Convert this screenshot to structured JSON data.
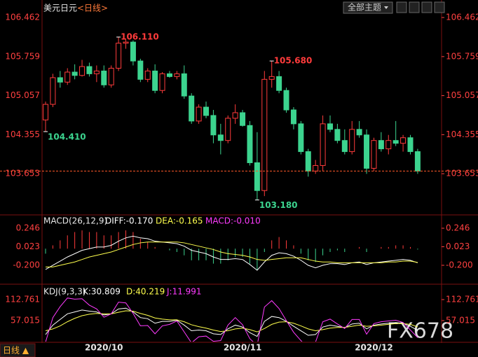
{
  "header": {
    "title": "美元日元",
    "period": "<日线>",
    "buttons": [
      "全部主题"
    ],
    "footer_tab": "日线 ▲",
    "watermark": "FX678"
  },
  "chart_data": [
    {
      "type": "candlestick",
      "up_color": "#ff3b3b",
      "down_color": "#3cd48f",
      "last_line_color": "#ff5a28",
      "open": [
        104.62,
        104.9,
        105.38,
        105.3,
        105.48,
        105.42,
        105.58,
        105.45,
        105.5,
        105.25,
        105.55,
        106.0,
        106.02,
        105.68,
        105.35,
        105.5,
        105.15,
        105.45,
        105.4,
        105.45,
        105.05,
        104.6,
        104.85,
        104.7,
        104.35,
        104.25,
        104.65,
        104.75,
        104.52,
        103.85,
        103.35,
        105.35,
        105.4,
        105.15,
        104.8,
        104.55,
        104.05,
        103.7,
        103.8,
        104.55,
        104.45,
        104.25,
        104.05,
        104.45,
        104.35,
        103.75,
        104.25,
        104.1,
        104.25,
        104.2,
        104.3,
        104.05
      ],
      "high": [
        104.95,
        105.45,
        105.5,
        105.55,
        105.62,
        105.7,
        105.65,
        105.6,
        105.6,
        105.6,
        106.11,
        106.08,
        106.05,
        105.72,
        105.55,
        105.62,
        105.48,
        105.5,
        105.5,
        105.6,
        105.1,
        104.9,
        104.95,
        104.8,
        104.55,
        104.7,
        104.9,
        104.8,
        104.6,
        104.4,
        105.5,
        105.68,
        105.5,
        105.2,
        104.85,
        104.6,
        104.1,
        103.9,
        104.7,
        104.7,
        104.55,
        104.45,
        104.6,
        104.6,
        104.45,
        104.3,
        104.4,
        104.35,
        104.6,
        104.35,
        104.35,
        104.1
      ],
      "low": [
        104.41,
        104.85,
        105.2,
        105.25,
        105.35,
        105.4,
        105.4,
        105.3,
        105.2,
        105.2,
        105.5,
        105.9,
        105.6,
        105.3,
        105.3,
        105.1,
        105.1,
        105.38,
        105.35,
        105.0,
        104.55,
        104.55,
        104.65,
        104.2,
        104.0,
        104.2,
        104.55,
        104.5,
        103.8,
        103.18,
        103.25,
        105.2,
        105.1,
        104.75,
        104.45,
        104.0,
        103.6,
        103.65,
        103.7,
        104.4,
        104.2,
        104.0,
        104.0,
        104.3,
        103.65,
        103.7,
        104.05,
        104.0,
        104.15,
        104.05,
        104.0,
        103.65
      ],
      "close": [
        104.9,
        105.38,
        105.3,
        105.48,
        105.42,
        105.58,
        105.45,
        105.5,
        105.25,
        105.55,
        106.0,
        106.02,
        105.68,
        105.35,
        105.5,
        105.15,
        105.45,
        105.4,
        105.45,
        105.05,
        104.6,
        104.85,
        104.7,
        104.35,
        104.25,
        104.65,
        104.75,
        104.52,
        103.85,
        103.35,
        105.35,
        105.4,
        105.15,
        104.8,
        104.55,
        104.05,
        103.7,
        103.8,
        104.55,
        104.45,
        104.25,
        104.05,
        104.45,
        104.35,
        103.75,
        104.25,
        104.1,
        104.25,
        104.2,
        104.3,
        104.05,
        103.7
      ],
      "ylim": [
        102.937,
        106.676
      ],
      "yticks": [
        106.462,
        105.759,
        105.057,
        104.355,
        103.653
      ],
      "annotations": [
        {
          "x": 10,
          "value": 106.11,
          "label": "106.110",
          "color": "#ff3b3b"
        },
        {
          "x": 31,
          "value": 105.68,
          "label": "105.680",
          "color": "#ff3b3b"
        },
        {
          "x": 0,
          "value": 104.41,
          "label": "104.410",
          "color": "#3cd48f"
        },
        {
          "x": 29,
          "value": 103.18,
          "label": "103.180",
          "color": "#3cd48f"
        }
      ]
    },
    {
      "type": "macd",
      "title": "MACD(26,12,9)",
      "up_color": "#ff3b3b",
      "down_color": "#3cd48f",
      "series": [
        {
          "name": "DIFF",
          "legend": "DIFF:-0.170",
          "color": "#ffffff",
          "values": [
            -0.25,
            -0.2,
            -0.15,
            -0.1,
            -0.06,
            -0.02,
            0,
            0.02,
            0.02,
            0.04,
            0.09,
            0.13,
            0.15,
            0.13,
            0.12,
            0.09,
            0.08,
            0.07,
            0.06,
            0.03,
            -0.02,
            -0.04,
            -0.06,
            -0.1,
            -0.13,
            -0.13,
            -0.12,
            -0.13,
            -0.19,
            -0.26,
            -0.16,
            -0.08,
            -0.05,
            -0.06,
            -0.09,
            -0.14,
            -0.2,
            -0.23,
            -0.2,
            -0.18,
            -0.18,
            -0.19,
            -0.17,
            -0.16,
            -0.19,
            -0.17,
            -0.16,
            -0.15,
            -0.14,
            -0.13,
            -0.14,
            -0.17
          ]
        },
        {
          "name": "DEA",
          "legend": "DEA:-0.165",
          "color": "#ffff4d",
          "values": [
            -0.22,
            -0.22,
            -0.2,
            -0.18,
            -0.16,
            -0.13,
            -0.1,
            -0.08,
            -0.06,
            -0.04,
            -0.01,
            0.02,
            0.05,
            0.07,
            0.08,
            0.08,
            0.08,
            0.08,
            0.08,
            0.07,
            0.05,
            0.03,
            0.01,
            -0.01,
            -0.04,
            -0.06,
            -0.07,
            -0.08,
            -0.1,
            -0.13,
            -0.14,
            -0.13,
            -0.12,
            -0.11,
            -0.11,
            -0.11,
            -0.13,
            -0.15,
            -0.16,
            -0.16,
            -0.17,
            -0.17,
            -0.17,
            -0.17,
            -0.17,
            -0.17,
            -0.17,
            -0.16,
            -0.16,
            -0.15,
            -0.15,
            -0.165
          ]
        },
        {
          "name": "MACD",
          "legend": "MACD:-0.010",
          "color": "#ff3bff",
          "bars": true,
          "values": [
            -0.06,
            0.04,
            0.1,
            0.16,
            0.2,
            0.22,
            0.2,
            0.2,
            0.16,
            0.16,
            0.2,
            0.22,
            0.2,
            0.12,
            0.08,
            0.02,
            0,
            -0.02,
            -0.04,
            -0.08,
            -0.14,
            -0.14,
            -0.14,
            -0.18,
            -0.18,
            -0.14,
            -0.1,
            -0.1,
            -0.18,
            -0.26,
            -0.04,
            0.1,
            0.14,
            0.1,
            0.04,
            -0.06,
            -0.14,
            -0.16,
            -0.08,
            -0.04,
            -0.02,
            -0.04,
            0,
            0.02,
            -0.04,
            0,
            0.02,
            0.02,
            0.04,
            0.04,
            0.02,
            -0.01
          ]
        }
      ],
      "ylim": [
        -0.419,
        0.381
      ],
      "yticks": [
        0.246,
        0.023,
        {
          "value": -0.2,
          "label": "-0.200"
        }
      ]
    },
    {
      "type": "kdj",
      "title": "KDJ(9,3,3)",
      "series": [
        {
          "name": "K",
          "legend": "K:30.809",
          "color": "#ffffff",
          "values": [
            20,
            45,
            60,
            75,
            80,
            85,
            82,
            80,
            72,
            75,
            88,
            90,
            80,
            65,
            62,
            50,
            55,
            55,
            58,
            45,
            30,
            32,
            30,
            22,
            20,
            35,
            45,
            40,
            25,
            15,
            55,
            68,
            65,
            55,
            42,
            30,
            18,
            20,
            40,
            45,
            42,
            38,
            48,
            50,
            35,
            45,
            48,
            50,
            52,
            50,
            42,
            30.809
          ]
        },
        {
          "name": "D",
          "legend": "D:40.219",
          "color": "#ffff4d",
          "values": [
            30,
            35,
            43,
            54,
            63,
            70,
            74,
            76,
            75,
            75,
            79,
            83,
            82,
            76,
            71,
            64,
            61,
            59,
            59,
            54,
            46,
            41,
            37,
            32,
            28,
            30,
            35,
            37,
            33,
            27,
            36,
            47,
            53,
            54,
            50,
            43,
            35,
            30,
            33,
            37,
            39,
            39,
            42,
            45,
            42,
            43,
            45,
            47,
            49,
            49,
            47,
            40.219
          ]
        },
        {
          "name": "J",
          "legend": "J:11.991",
          "color": "#ff3bff",
          "values": [
            0,
            65,
            94,
            117,
            114,
            115,
            98,
            88,
            66,
            75,
            106,
            104,
            76,
            43,
            44,
            22,
            43,
            47,
            56,
            27,
            -2,
            14,
            16,
            2,
            4,
            45,
            65,
            46,
            9,
            -9,
            93,
            110,
            89,
            57,
            26,
            4,
            -16,
            0,
            54,
            61,
            48,
            36,
            60,
            60,
            21,
            49,
            54,
            56,
            58,
            52,
            32,
            11.991
          ]
        }
      ],
      "ylim": [
        1.27,
        149.9
      ],
      "yticks": [
        112.761,
        57.015
      ],
      "xticks": [
        {
          "value": 8,
          "label": "2020/10"
        },
        {
          "value": 27,
          "label": "2020/11"
        },
        {
          "value": 45,
          "label": "2020/12"
        }
      ]
    }
  ]
}
